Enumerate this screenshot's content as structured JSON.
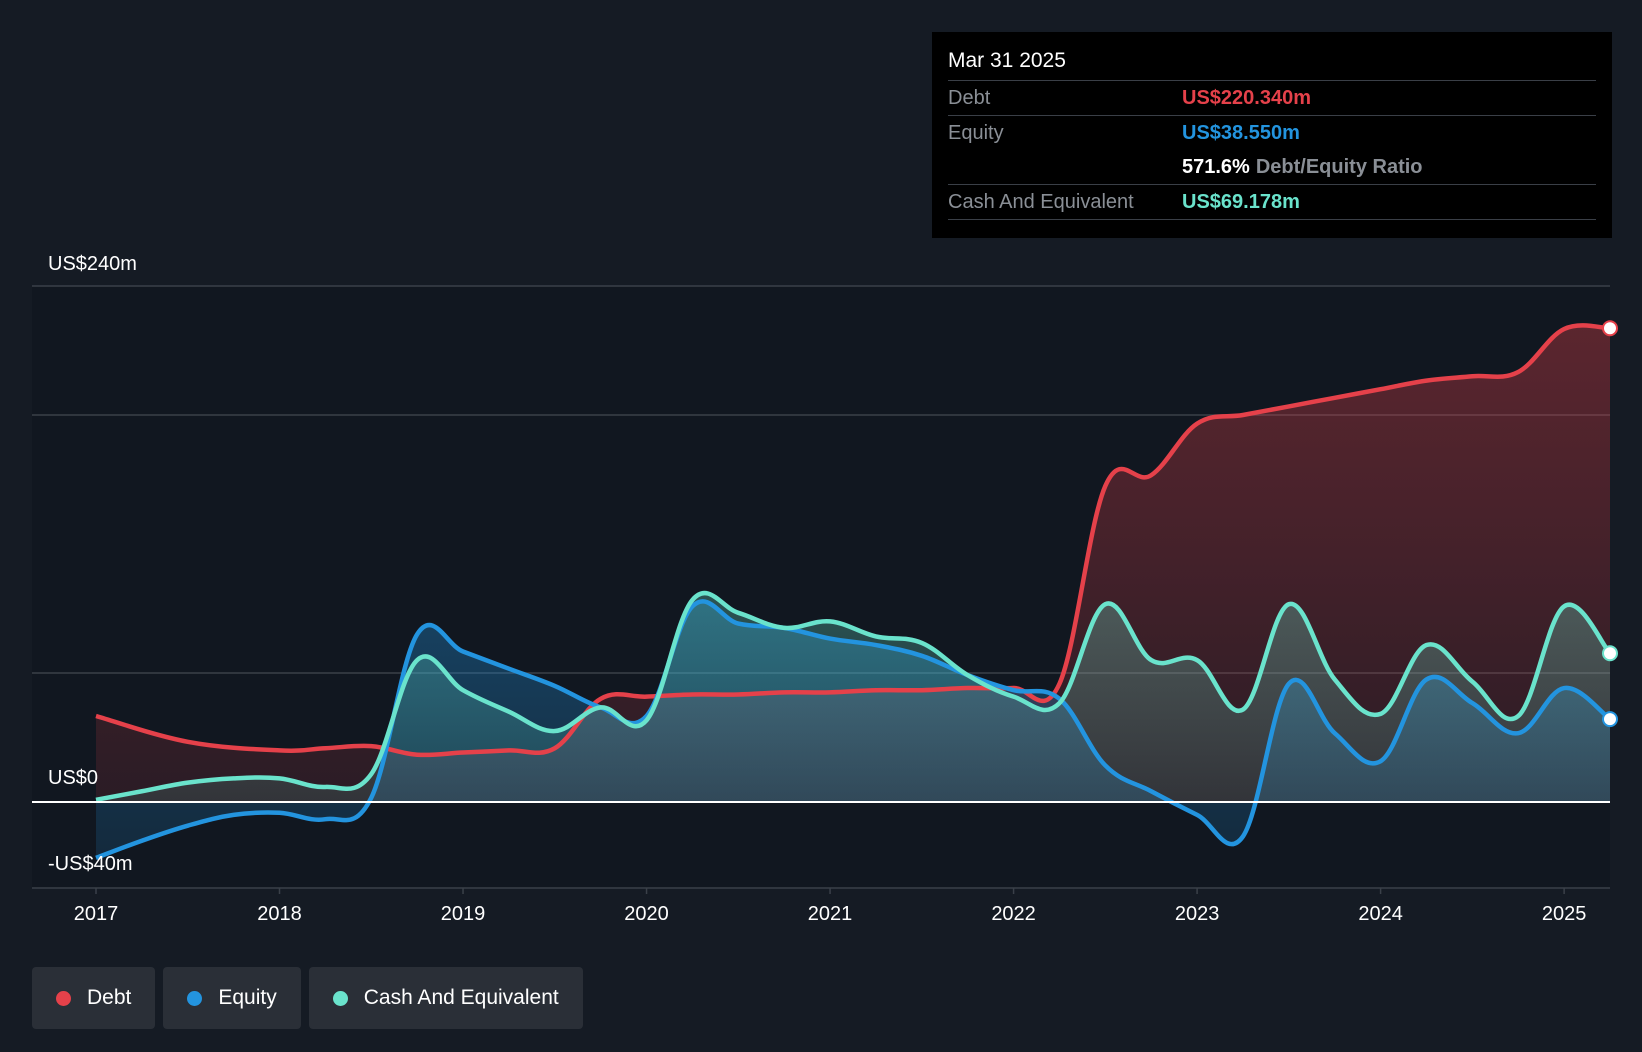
{
  "tooltip": {
    "date": "Mar 31 2025",
    "debt_label": "Debt",
    "debt_value": "US$220.340m",
    "equity_label": "Equity",
    "equity_value": "US$38.550m",
    "ratio_value": "571.6%",
    "ratio_label": "Debt/Equity Ratio",
    "cash_label": "Cash And Equivalent",
    "cash_value": "US$69.178m"
  },
  "legend": [
    {
      "label": "Debt",
      "color": "#e5414a"
    },
    {
      "label": "Equity",
      "color": "#2394df"
    },
    {
      "label": "Cash And Equivalent",
      "color": "#6ae3cc"
    }
  ],
  "chart_data": {
    "type": "area",
    "y_axis_labels": {
      "top": "US$240m",
      "zero": "US$0",
      "bottom": "-US$40m"
    },
    "ylim": [
      -40,
      240
    ],
    "xlim": [
      2017,
      2025.25
    ],
    "x_ticks": [
      "2017",
      "2018",
      "2019",
      "2020",
      "2021",
      "2022",
      "2023",
      "2024",
      "2025"
    ],
    "colors": {
      "debt": "#e5414a",
      "equity": "#2394df",
      "cash": "#6ae3cc"
    },
    "series": [
      {
        "name": "Debt",
        "x": [
          2017.0,
          2017.5,
          2018.0,
          2018.25,
          2018.5,
          2018.75,
          2019.0,
          2019.25,
          2019.5,
          2019.75,
          2020.0,
          2020.25,
          2020.5,
          2020.75,
          2021.0,
          2021.25,
          2021.5,
          2021.75,
          2022.0,
          2022.25,
          2022.5,
          2022.75,
          2023.0,
          2023.25,
          2023.5,
          2023.75,
          2024.0,
          2024.25,
          2024.5,
          2024.75,
          2025.0,
          2025.25
        ],
        "values": [
          40,
          28,
          24,
          25,
          26,
          22,
          23,
          24,
          25,
          48,
          49,
          50,
          50,
          51,
          51,
          52,
          52,
          53,
          53,
          55,
          147,
          152,
          176,
          180,
          184,
          188,
          192,
          196,
          198,
          200,
          220,
          220.34
        ]
      },
      {
        "name": "Equity",
        "x": [
          2017.0,
          2017.25,
          2017.5,
          2017.75,
          2018.0,
          2018.25,
          2018.5,
          2018.75,
          2019.0,
          2019.25,
          2019.5,
          2019.75,
          2020.0,
          2020.25,
          2020.5,
          2020.75,
          2021.0,
          2021.25,
          2021.5,
          2021.75,
          2022.0,
          2022.25,
          2022.5,
          2022.75,
          2023.0,
          2023.25,
          2023.5,
          2023.75,
          2024.0,
          2024.25,
          2024.5,
          2024.75,
          2025.0,
          2025.25
        ],
        "values": [
          -26,
          -18,
          -11,
          -6,
          -5,
          -8,
          2,
          78,
          70,
          62,
          54,
          44,
          40,
          91,
          83,
          81,
          76,
          73,
          68,
          59,
          52,
          48,
          17,
          5,
          -6,
          -16,
          55,
          32,
          19,
          57,
          46,
          32,
          53,
          38.55
        ]
      },
      {
        "name": "Cash And Equivalent",
        "x": [
          2017.0,
          2017.25,
          2017.5,
          2017.75,
          2018.0,
          2018.25,
          2018.5,
          2018.75,
          2019.0,
          2019.25,
          2019.5,
          2019.75,
          2020.0,
          2020.25,
          2020.5,
          2020.75,
          2021.0,
          2021.25,
          2021.5,
          2021.75,
          2022.0,
          2022.25,
          2022.5,
          2022.75,
          2023.0,
          2023.25,
          2023.5,
          2023.75,
          2024.0,
          2024.25,
          2024.5,
          2024.75,
          2025.0,
          2025.25
        ],
        "values": [
          1,
          5,
          9,
          11,
          11,
          7,
          13,
          66,
          52,
          42,
          33,
          44,
          38,
          94,
          88,
          81,
          84,
          77,
          74,
          59,
          49,
          46,
          92,
          66,
          66,
          43,
          92,
          57,
          41,
          73,
          56,
          40,
          91,
          69.178
        ]
      }
    ]
  }
}
